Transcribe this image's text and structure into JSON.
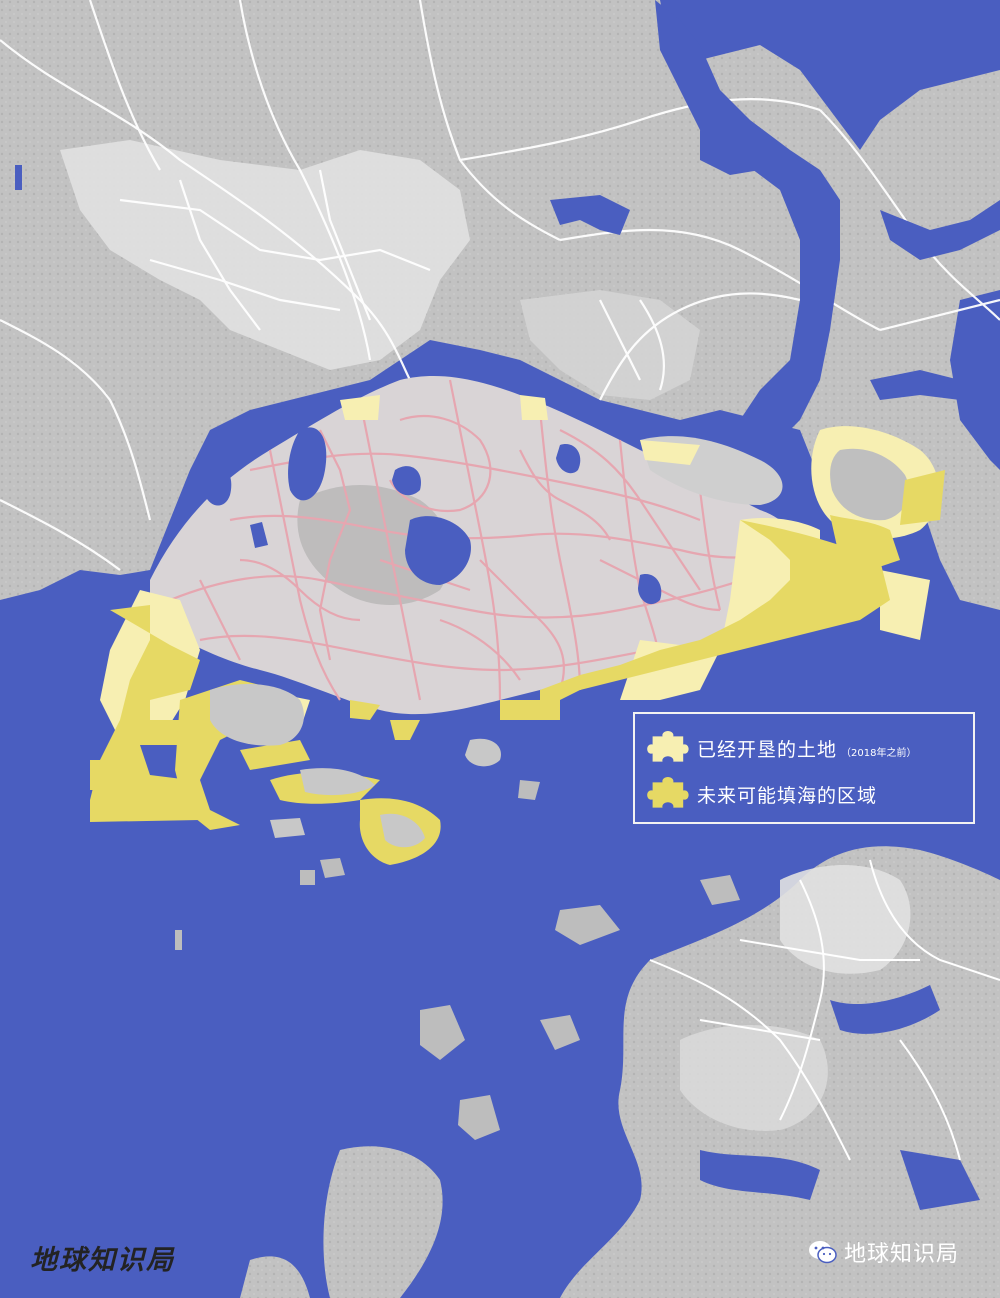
{
  "legend": {
    "items": [
      {
        "label": "已经开垦的土地",
        "note": "（2018年之前）",
        "color": "#f7efb2",
        "icon": "puzzle-piece-icon"
      },
      {
        "label": "未来可能填海的区域",
        "note": "",
        "color": "#e6d964",
        "icon": "puzzle-piece-icon"
      }
    ]
  },
  "watermark_left": "地球知识局",
  "watermark_right": {
    "icon": "wechat-icon",
    "text": "地球知识局"
  },
  "colors": {
    "water": "#4a5ec0",
    "land": "#bfbfbf",
    "urban": "#e3e3e3",
    "singapore_land": "#d9d4d6",
    "roads_singapore": "#e6a6b0",
    "roads_other": "#ffffff",
    "reclaimed": "#f7efb2",
    "future_reclaim": "#e6d964"
  }
}
